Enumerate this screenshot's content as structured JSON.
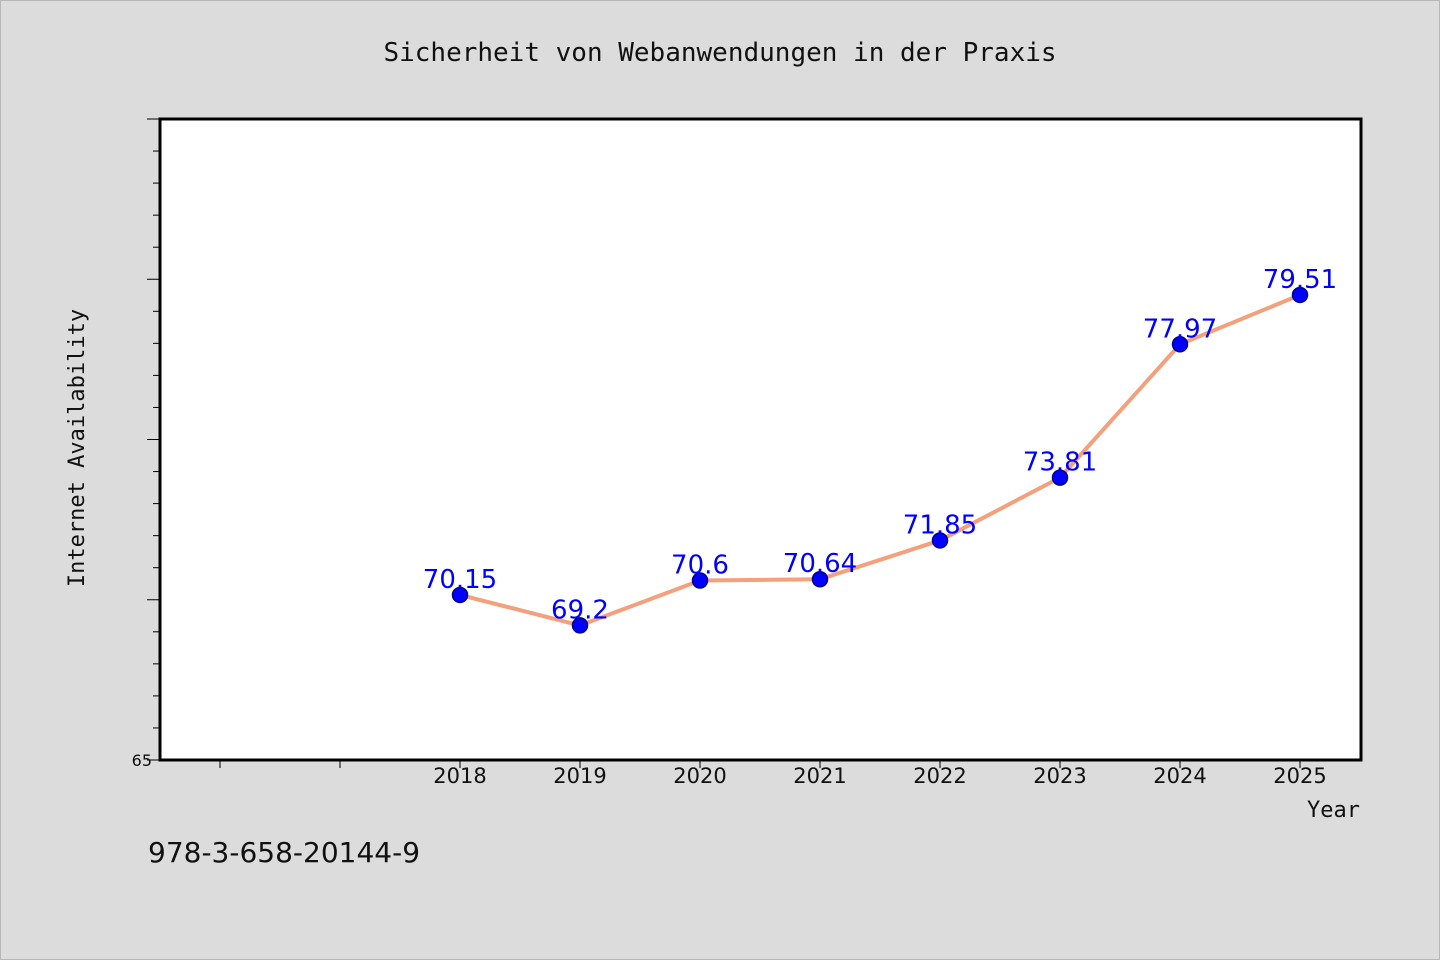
{
  "footer_code": "978-3-658-20144-9",
  "colors": {
    "background": "#dcdcdc",
    "plot_background": "#ffffff",
    "line": "#f4a07c",
    "marker_fill": "#0000ff",
    "marker_stroke": "#00008b",
    "data_label": "#0000ff"
  },
  "chart_data": {
    "type": "line",
    "title": "Sicherheit von Webanwendungen in der Praxis",
    "xlabel": "Year",
    "ylabel": "Internet Availability",
    "x": [
      "2018",
      "2019",
      "2020",
      "2021",
      "2022",
      "2023",
      "2024",
      "2025"
    ],
    "series": [
      {
        "values": [
          70.15,
          69.2,
          70.6,
          70.64,
          71.85,
          73.81,
          77.97,
          79.51
        ],
        "data_labels": [
          "70.15",
          "69.2",
          "70.6",
          "70.64",
          "71.85",
          "73.81",
          "77.97",
          "79.51"
        ]
      }
    ],
    "ylim": [
      65,
      85
    ],
    "yticks_labeled": [
      "65"
    ],
    "grid": false,
    "legend": "none"
  }
}
